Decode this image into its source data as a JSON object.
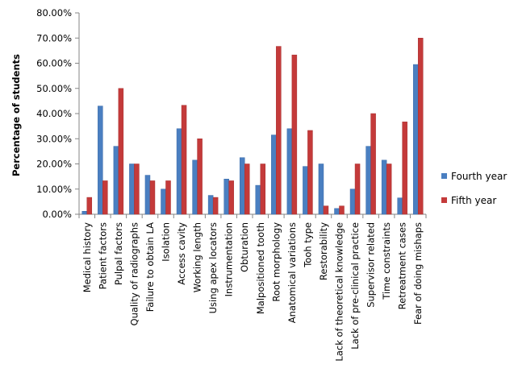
{
  "chart_data": {
    "type": "bar",
    "title": "",
    "xlabel": "",
    "ylabel": "Percentage of students",
    "ylim": [
      0,
      80
    ],
    "ytick_labels": [
      "0.00%",
      "10.00%",
      "20.00%",
      "30.00%",
      "40.00%",
      "50.00%",
      "60.00%",
      "70.00%",
      "80.00%"
    ],
    "grid": false,
    "legend_position": "right",
    "categories": [
      "Medical history",
      "Patient factors",
      "Pulpal factors",
      "Quality of radiographs",
      "Failure to obtain LA",
      "Isolation",
      "Access cavity",
      "Working length",
      "Using apex locators",
      "Instrumentation",
      "Obturation",
      "Malpositioned tooth",
      "Root morphology",
      "Anatomical variations",
      "Tooh type",
      "Restorability",
      "Lack of theoretical knowledge",
      "Lack of pre-clinical practice",
      "Supervisor related",
      "Time constraints",
      "Retreatment cases",
      "Fear of doing mishaps"
    ],
    "series": [
      {
        "name": "Fourth year",
        "color": "#4a7fc1",
        "values": [
          1.2,
          43,
          27,
          20,
          15.5,
          10,
          34,
          21.5,
          7.5,
          14,
          22.5,
          11.5,
          31.5,
          34,
          19,
          20,
          2.3,
          10,
          27,
          21.5,
          6.5,
          59.5
        ]
      },
      {
        "name": "Fifth year",
        "color": "#c43a3a",
        "values": [
          6.7,
          13.3,
          50,
          20,
          13.3,
          13.3,
          43.3,
          30,
          6.7,
          13.3,
          20,
          20,
          66.7,
          63.3,
          33.3,
          3.3,
          3.3,
          20,
          40,
          20,
          36.7,
          70
        ]
      }
    ]
  }
}
